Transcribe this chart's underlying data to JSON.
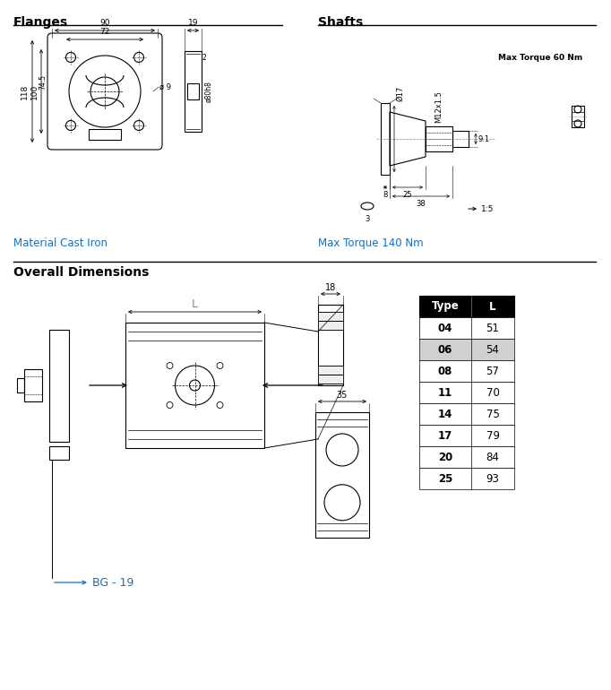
{
  "section1_title": "Flanges",
  "section2_title": "Shafts",
  "section3_title": "Overall Dimensions",
  "material_text": "Material Cast Iron",
  "max_torque_text1": "Max Torque 140 Nm",
  "max_torque_text2": "Max Torque 60 Nm",
  "bg_label": "BG - 19",
  "table_header": [
    "Type",
    "L"
  ],
  "table_data": [
    [
      "04",
      "51"
    ],
    [
      "06",
      "54"
    ],
    [
      "08",
      "57"
    ],
    [
      "11",
      "70"
    ],
    [
      "14",
      "75"
    ],
    [
      "17",
      "79"
    ],
    [
      "20",
      "84"
    ],
    [
      "25",
      "93"
    ]
  ],
  "table_highlight_row": 1,
  "header_bg": "#000000",
  "highlight_bg": "#d0d0d0",
  "text_color_blue": "#1a6eb5",
  "bg_color": "#ffffff"
}
